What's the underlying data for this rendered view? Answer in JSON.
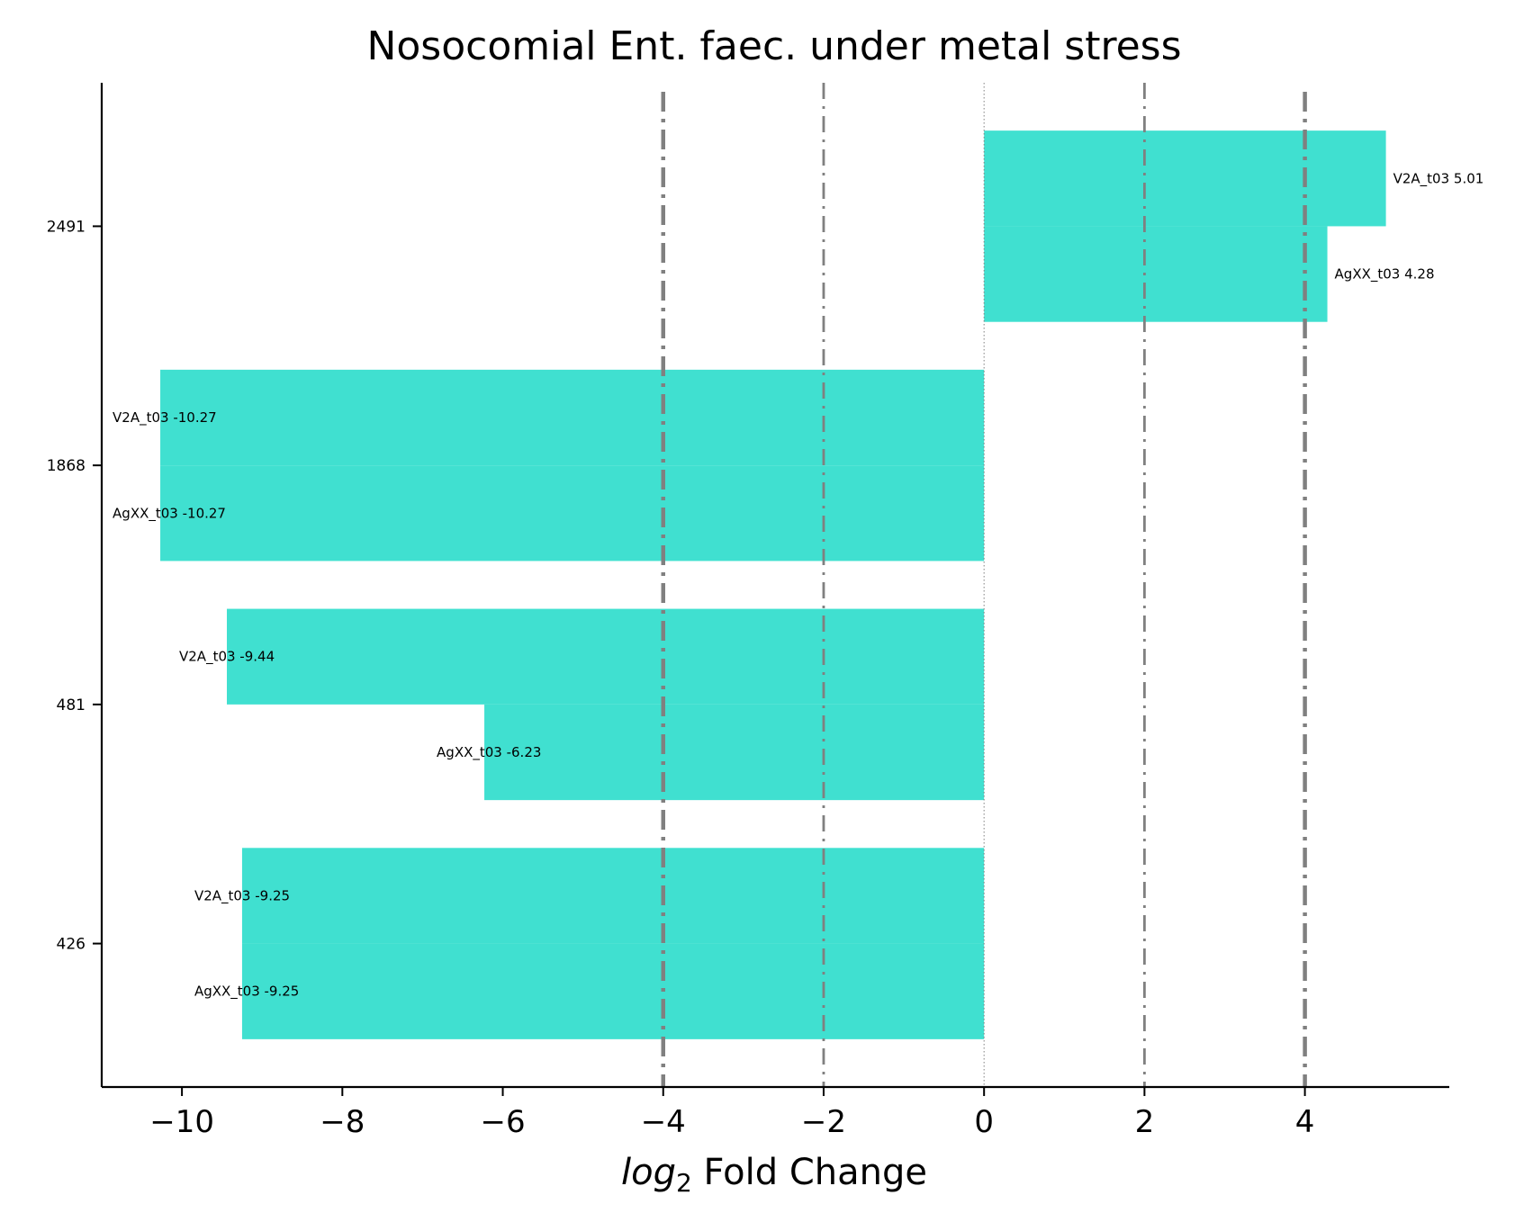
{
  "chart_data": {
    "type": "bar",
    "orientation": "horizontal",
    "title": "Nosocomial Ent. faec. under metal stress",
    "xlabel": {
      "prefix": "log",
      "subscript": "2",
      "suffix": " Fold Change"
    },
    "ylabel": "",
    "xlim": [
      -11,
      5.8
    ],
    "xticks": [
      -10,
      -8,
      -6,
      -4,
      -2,
      0,
      2,
      4
    ],
    "xtick_labels": [
      "−10",
      "−8",
      "−6",
      "−4",
      "−2",
      "0",
      "2",
      "4"
    ],
    "categories": [
      "2491",
      "1868",
      "481",
      "426"
    ],
    "series": [
      {
        "name": "V2A_t03",
        "values": [
          5.01,
          -10.27,
          -9.44,
          -9.25
        ]
      },
      {
        "name": "AgXX_t03",
        "values": [
          4.28,
          -10.27,
          -6.23,
          -9.25
        ]
      }
    ],
    "bar_labels": [
      [
        "V2A_t03 5.01",
        "AgXX_t03 4.28"
      ],
      [
        "V2A_t03 -10.27",
        "AgXX_t03 -10.27"
      ],
      [
        "V2A_t03 -9.44",
        "AgXX_t03 -6.23"
      ],
      [
        "V2A_t03 -9.25",
        "AgXX_t03 -9.25"
      ]
    ],
    "reference_lines": [
      {
        "x": -4,
        "style": "dashdot",
        "weight": "thick"
      },
      {
        "x": -2,
        "style": "dashdot",
        "weight": "thin"
      },
      {
        "x": 0,
        "style": "dotted",
        "weight": "hair"
      },
      {
        "x": 2,
        "style": "dashdot",
        "weight": "thin"
      },
      {
        "x": 4,
        "style": "dashdot",
        "weight": "thick"
      }
    ],
    "colors": {
      "bar": "#40e0d0",
      "reference": "#808080",
      "axis": "#000000"
    },
    "grid": false,
    "legend": "none"
  }
}
